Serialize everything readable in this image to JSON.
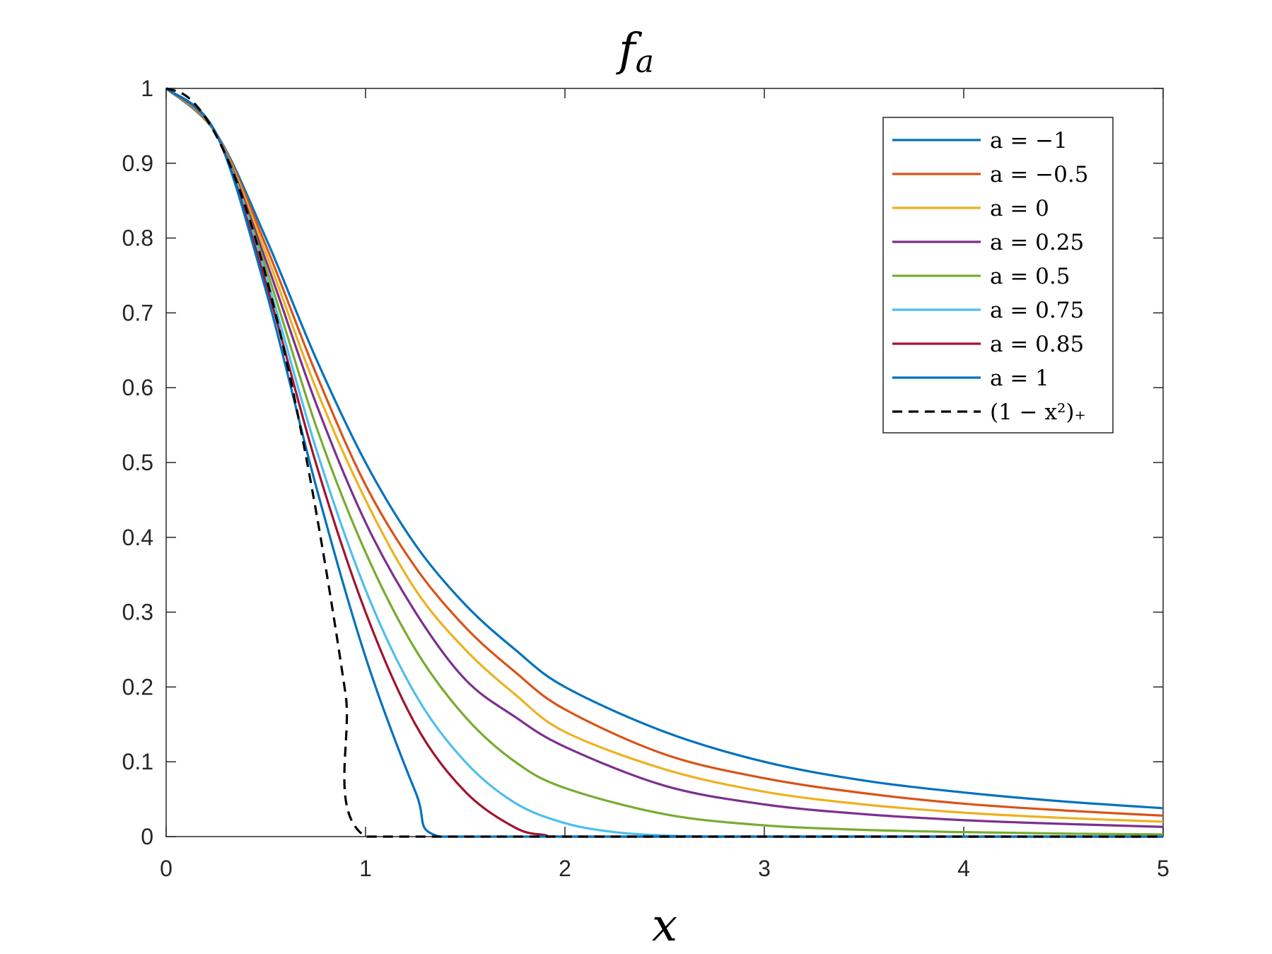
{
  "chart_data": {
    "type": "line",
    "title": "f",
    "title_sub": "a",
    "xlabel": "x",
    "ylabel": "",
    "xlim": [
      0,
      5
    ],
    "ylim": [
      0,
      1
    ],
    "xticks": [
      "0",
      "1",
      "2",
      "3",
      "4",
      "5"
    ],
    "yticks": [
      "0",
      "0.1",
      "0.2",
      "0.3",
      "0.4",
      "0.5",
      "0.6",
      "0.7",
      "0.8",
      "0.9",
      "1"
    ],
    "grid": false,
    "legend_position": "top-right",
    "series": [
      {
        "name": "a = −1",
        "color": "#0072BD",
        "dashed": false,
        "x": [
          0,
          0.25,
          0.5,
          0.75,
          1,
          1.25,
          1.5,
          1.75,
          2,
          2.5,
          3,
          3.5,
          4,
          4.5,
          5
        ],
        "y": [
          1,
          0.94,
          0.8,
          0.64,
          0.5,
          0.39,
          0.31,
          0.25,
          0.2,
          0.14,
          0.1,
          0.075,
          0.059,
          0.047,
          0.038
        ]
      },
      {
        "name": "a = −0.5",
        "color": "#D95319",
        "dashed": false,
        "x": [
          0,
          0.25,
          0.5,
          0.75,
          1,
          1.25,
          1.5,
          1.75,
          2,
          2.5,
          3,
          3.5,
          4,
          4.5,
          5
        ],
        "y": [
          1,
          0.94,
          0.79,
          0.62,
          0.47,
          0.36,
          0.28,
          0.22,
          0.17,
          0.11,
          0.078,
          0.058,
          0.044,
          0.035,
          0.028
        ]
      },
      {
        "name": "a = 0",
        "color": "#EDB120",
        "dashed": false,
        "x": [
          0,
          0.25,
          0.5,
          0.75,
          1,
          1.25,
          1.5,
          1.75,
          2,
          2.5,
          3,
          3.5,
          4,
          4.5,
          5
        ],
        "y": [
          1,
          0.94,
          0.78,
          0.6,
          0.45,
          0.33,
          0.25,
          0.19,
          0.14,
          0.09,
          0.06,
          0.043,
          0.032,
          0.025,
          0.02
        ]
      },
      {
        "name": "a = 0.25",
        "color": "#7E2F8E",
        "dashed": false,
        "x": [
          0,
          0.25,
          0.5,
          0.75,
          1,
          1.25,
          1.5,
          1.75,
          2,
          2.5,
          3,
          3.5,
          4,
          4.5,
          5
        ],
        "y": [
          1,
          0.94,
          0.77,
          0.58,
          0.42,
          0.3,
          0.21,
          0.16,
          0.12,
          0.068,
          0.043,
          0.03,
          0.022,
          0.017,
          0.013
        ]
      },
      {
        "name": "a = 0.5",
        "color": "#77AC30",
        "dashed": false,
        "x": [
          0,
          0.25,
          0.5,
          0.75,
          1,
          1.25,
          1.5,
          1.75,
          2,
          2.5,
          3,
          3.5,
          4,
          4.5,
          5
        ],
        "y": [
          1,
          0.94,
          0.76,
          0.55,
          0.38,
          0.25,
          0.16,
          0.1,
          0.065,
          0.03,
          0.015,
          0.009,
          0.006,
          0.004,
          0.003
        ]
      },
      {
        "name": "a = 0.75",
        "color": "#4DBEEE",
        "dashed": false,
        "x": [
          0,
          0.25,
          0.5,
          0.75,
          1,
          1.25,
          1.5,
          1.75,
          2,
          2.25,
          2.5,
          2.75,
          3,
          4,
          5
        ],
        "y": [
          1,
          0.94,
          0.75,
          0.52,
          0.33,
          0.19,
          0.1,
          0.045,
          0.018,
          0.006,
          0.0015,
          0,
          0,
          0,
          0
        ]
      },
      {
        "name": "a = 0.85",
        "color": "#A2142F",
        "dashed": false,
        "x": [
          0,
          0.25,
          0.5,
          0.75,
          1,
          1.25,
          1.5,
          1.75,
          1.9,
          2,
          3,
          4,
          5
        ],
        "y": [
          1,
          0.94,
          0.74,
          0.5,
          0.3,
          0.15,
          0.06,
          0.012,
          0.002,
          0,
          0,
          0,
          0
        ]
      },
      {
        "name": "a = 1",
        "color": "#0072BD",
        "dashed": false,
        "x": [
          0,
          0.25,
          0.5,
          0.75,
          1,
          1.25,
          1.37,
          2,
          3,
          4,
          5
        ],
        "y": [
          1,
          0.94,
          0.73,
          0.47,
          0.24,
          0.06,
          0,
          0,
          0,
          0,
          0
        ]
      },
      {
        "name": "(1 − x²)₊",
        "color": "#000000",
        "dashed": true,
        "x": [
          0,
          0.1,
          0.2,
          0.3,
          0.4,
          0.5,
          0.6,
          0.7,
          0.8,
          0.9,
          1,
          2,
          3,
          4,
          5
        ],
        "y": [
          1,
          0.99,
          0.96,
          0.91,
          0.84,
          0.75,
          0.64,
          0.51,
          0.36,
          0.19,
          0,
          0,
          0,
          0,
          0
        ]
      }
    ]
  }
}
